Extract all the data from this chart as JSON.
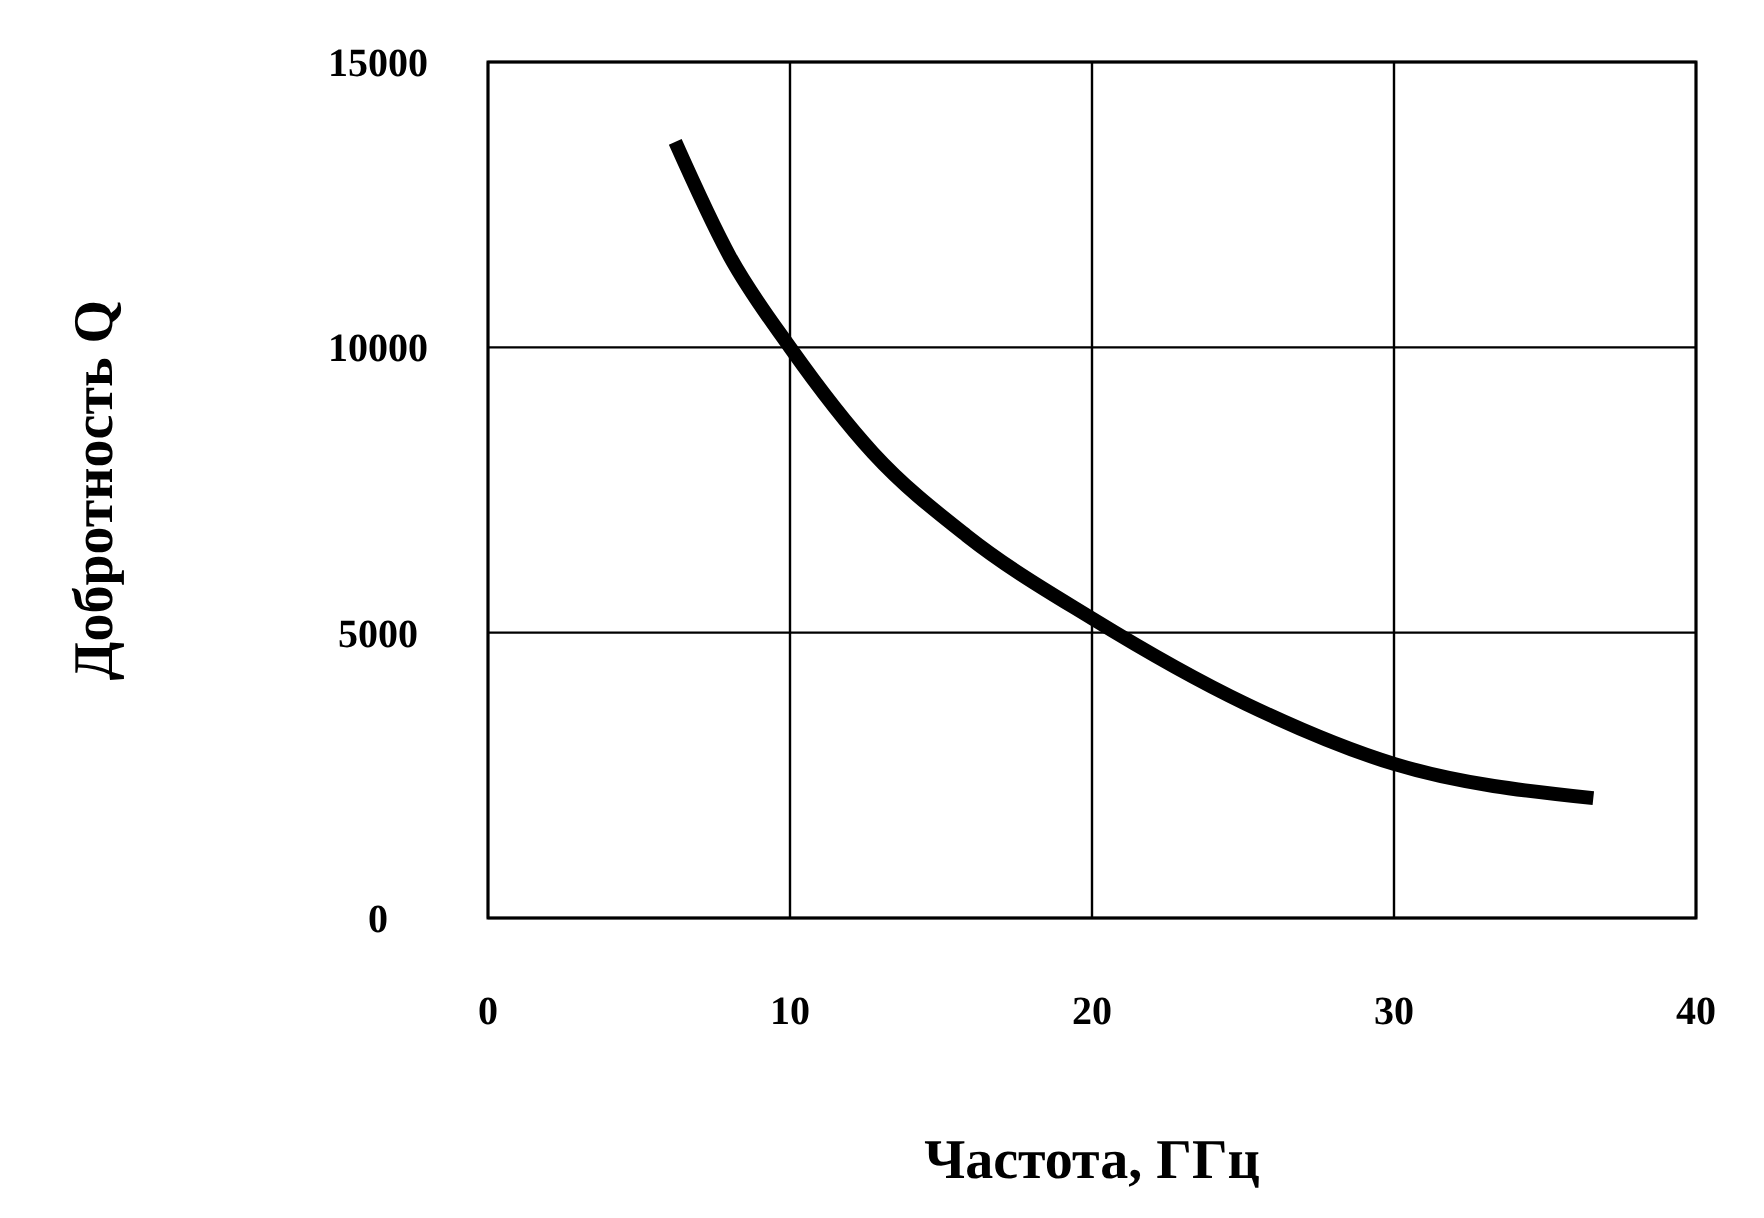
{
  "chart_data": {
    "type": "line",
    "xlabel": "Частота, ГГц",
    "ylabel": "Добротность Q",
    "x": [
      6.2,
      8,
      10,
      12.75,
      15.85,
      20,
      25.1,
      30,
      36.6
    ],
    "series": [
      {
        "color": "#000000",
        "values": [
          13600,
          11600,
          10000,
          8150,
          6700,
          5250,
          3750,
          2700,
          2100
        ]
      }
    ],
    "xlim": [
      0,
      40
    ],
    "ylim": [
      0,
      15000
    ],
    "xticks": [
      0,
      10,
      20,
      30,
      40
    ],
    "yticks": [
      0,
      5000,
      10000,
      15000
    ],
    "grid": true,
    "marker": "none",
    "line_style": "solid"
  }
}
